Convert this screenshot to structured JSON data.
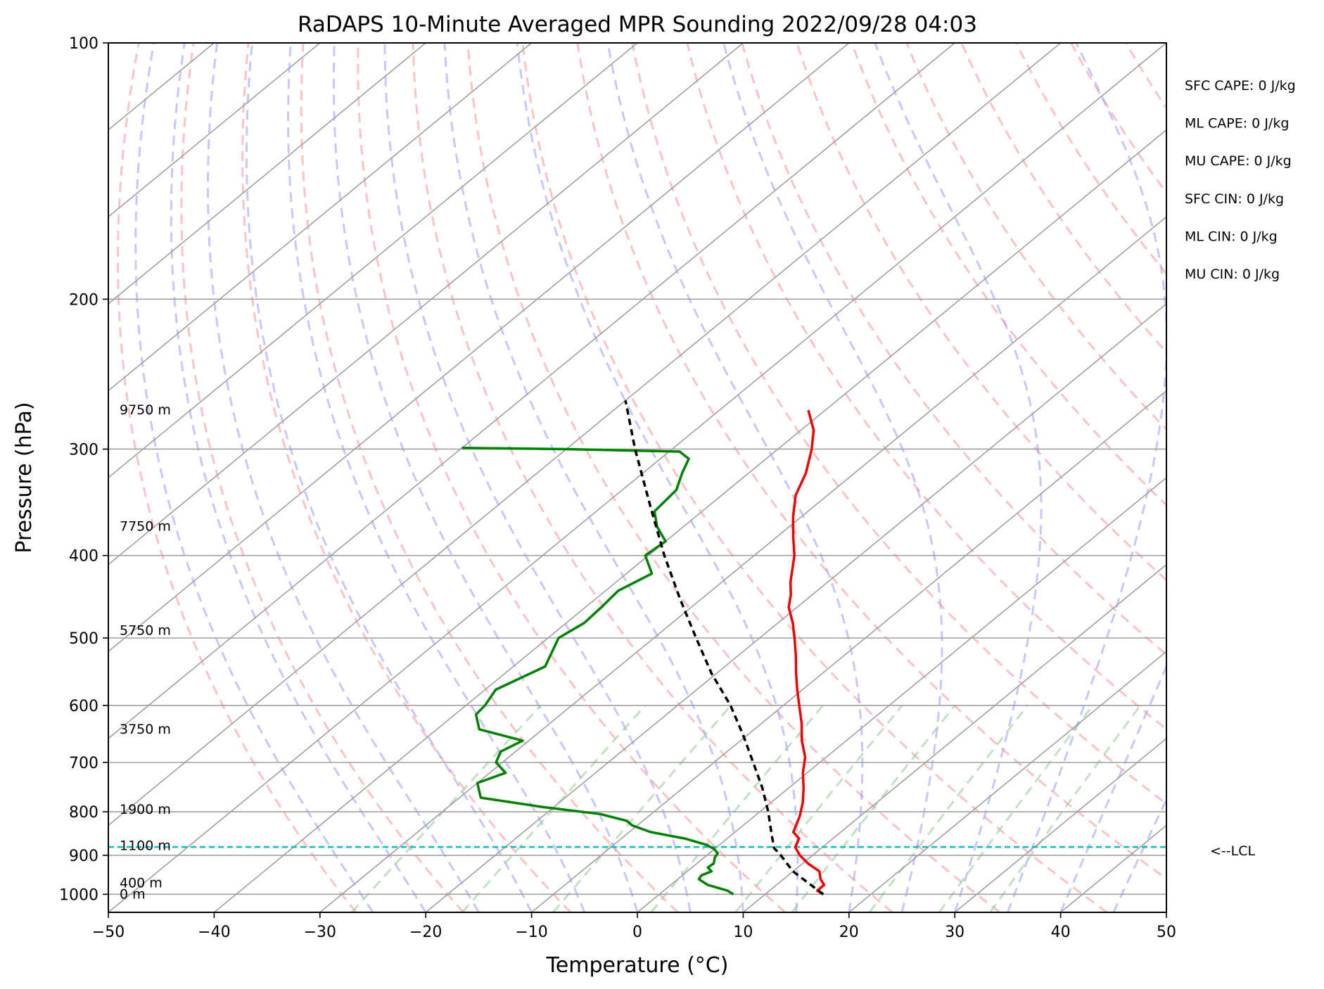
{
  "chart_data": {
    "type": "line",
    "title": "RaDAPS 10-Minute Averaged MPR Sounding 2022/09/28 04:03",
    "xlabel": "Temperature (°C)",
    "ylabel": "Pressure (hPa)",
    "xlim": [
      -50,
      50
    ],
    "ylim": [
      1050,
      100
    ],
    "y_scale": "log",
    "skew_t": true,
    "grid": true,
    "x_ticks": [
      "−50",
      "−40",
      "−30",
      "−20",
      "−10",
      "0",
      "10",
      "20",
      "30",
      "40",
      "50"
    ],
    "x_tick_values": [
      -50,
      -40,
      -30,
      -20,
      -10,
      0,
      10,
      20,
      30,
      40,
      50
    ],
    "y_ticks": [
      "100",
      "200",
      "300",
      "400",
      "500",
      "600",
      "700",
      "800",
      "900",
      "1000"
    ],
    "y_tick_values": [
      100,
      200,
      300,
      400,
      500,
      600,
      700,
      800,
      900,
      1000
    ],
    "series": [
      {
        "role": "temperature",
        "color": "#ee0000",
        "points": [
          {
            "p": 1000,
            "t": 15.5
          },
          {
            "p": 990,
            "t": 14.5
          },
          {
            "p": 975,
            "t": 14.5
          },
          {
            "p": 960,
            "t": 13.5
          },
          {
            "p": 940,
            "t": 12.5
          },
          {
            "p": 920,
            "t": 10.5
          },
          {
            "p": 900,
            "t": 8.8
          },
          {
            "p": 880,
            "t": 7.4
          },
          {
            "p": 860,
            "t": 6.8
          },
          {
            "p": 845,
            "t": 5.5
          },
          {
            "p": 830,
            "t": 5.0
          },
          {
            "p": 810,
            "t": 4.3
          },
          {
            "p": 780,
            "t": 3.0
          },
          {
            "p": 750,
            "t": 1.4
          },
          {
            "p": 720,
            "t": -0.4
          },
          {
            "p": 690,
            "t": -2.0
          },
          {
            "p": 660,
            "t": -4.2
          },
          {
            "p": 630,
            "t": -6.2
          },
          {
            "p": 600,
            "t": -8.5
          },
          {
            "p": 575,
            "t": -10.5
          },
          {
            "p": 550,
            "t": -12.5
          },
          {
            "p": 525,
            "t": -14.5
          },
          {
            "p": 500,
            "t": -16.7
          },
          {
            "p": 480,
            "t": -18.6
          },
          {
            "p": 460,
            "t": -20.8
          },
          {
            "p": 445,
            "t": -22.0
          },
          {
            "p": 430,
            "t": -23.5
          },
          {
            "p": 400,
            "t": -26.2
          },
          {
            "p": 380,
            "t": -28.5
          },
          {
            "p": 360,
            "t": -30.8
          },
          {
            "p": 340,
            "t": -33.0
          },
          {
            "p": 320,
            "t": -34.6
          },
          {
            "p": 300,
            "t": -36.8
          },
          {
            "p": 285,
            "t": -38.8
          },
          {
            "p": 270,
            "t": -41.6
          }
        ]
      },
      {
        "role": "dewpoint",
        "color": "#008000",
        "points": [
          {
            "p": 1000,
            "t": 7.0
          },
          {
            "p": 990,
            "t": 6.0
          },
          {
            "p": 975,
            "t": 3.5
          },
          {
            "p": 960,
            "t": 2.0
          },
          {
            "p": 950,
            "t": 1.8
          },
          {
            "p": 940,
            "t": 2.3
          },
          {
            "p": 930,
            "t": 1.5
          },
          {
            "p": 920,
            "t": 1.6
          },
          {
            "p": 905,
            "t": 1.0
          },
          {
            "p": 895,
            "t": 0.8
          },
          {
            "p": 885,
            "t": 0.0
          },
          {
            "p": 875,
            "t": -1.2
          },
          {
            "p": 860,
            "t": -4.0
          },
          {
            "p": 845,
            "t": -8.0
          },
          {
            "p": 830,
            "t": -10.5
          },
          {
            "p": 820,
            "t": -11.5
          },
          {
            "p": 805,
            "t": -14.8
          },
          {
            "p": 790,
            "t": -21.0
          },
          {
            "p": 770,
            "t": -28.0
          },
          {
            "p": 740,
            "t": -30.0
          },
          {
            "p": 720,
            "t": -28.5
          },
          {
            "p": 700,
            "t": -30.6
          },
          {
            "p": 680,
            "t": -31.4
          },
          {
            "p": 660,
            "t": -30.6
          },
          {
            "p": 640,
            "t": -36.0
          },
          {
            "p": 615,
            "t": -38.0
          },
          {
            "p": 600,
            "t": -38.2
          },
          {
            "p": 575,
            "t": -39.0
          },
          {
            "p": 540,
            "t": -37.0
          },
          {
            "p": 500,
            "t": -39.0
          },
          {
            "p": 480,
            "t": -38.3
          },
          {
            "p": 460,
            "t": -38.5
          },
          {
            "p": 440,
            "t": -38.8
          },
          {
            "p": 420,
            "t": -37.6
          },
          {
            "p": 400,
            "t": -40.3
          },
          {
            "p": 385,
            "t": -40.0
          },
          {
            "p": 370,
            "t": -42.5
          },
          {
            "p": 355,
            "t": -44.5
          },
          {
            "p": 335,
            "t": -44.9
          },
          {
            "p": 320,
            "t": -46.3
          },
          {
            "p": 308,
            "t": -47.3
          },
          {
            "p": 302,
            "t": -49.0
          },
          {
            "p": 300,
            "t": -60.0
          },
          {
            "p": 299,
            "t": -70.0
          }
        ]
      },
      {
        "role": "parcel",
        "color": "#000000",
        "dashed": true,
        "points": [
          {
            "p": 1000,
            "t": 15.5
          },
          {
            "p": 940,
            "t": 10.0
          },
          {
            "p": 900,
            "t": 7.0
          },
          {
            "p": 882,
            "t": 5.5
          },
          {
            "p": 850,
            "t": 3.7
          },
          {
            "p": 800,
            "t": 0.8
          },
          {
            "p": 750,
            "t": -2.5
          },
          {
            "p": 700,
            "t": -6.3
          },
          {
            "p": 650,
            "t": -10.4
          },
          {
            "p": 600,
            "t": -15.0
          },
          {
            "p": 550,
            "t": -20.5
          },
          {
            "p": 500,
            "t": -26.0
          },
          {
            "p": 450,
            "t": -32.0
          },
          {
            "p": 400,
            "t": -38.5
          },
          {
            "p": 350,
            "t": -45.5
          },
          {
            "p": 300,
            "t": -53.5
          },
          {
            "p": 263,
            "t": -60.0
          }
        ]
      }
    ],
    "lcl": {
      "p": 880,
      "label": "<--LCL",
      "color": "#00c0c0"
    },
    "height_labels": [
      {
        "p": 270,
        "label": "9750 m"
      },
      {
        "p": 370,
        "label": "7750 m"
      },
      {
        "p": 490,
        "label": "5750 m"
      },
      {
        "p": 640,
        "label": "3750 m"
      },
      {
        "p": 795,
        "label": "1900 m"
      },
      {
        "p": 877,
        "label": "1100 m"
      },
      {
        "p": 970,
        "label": "400 m"
      },
      {
        "p": 1000,
        "label": "0 m"
      }
    ],
    "indices": [
      {
        "label": "SFC CAPE: 0 J/kg"
      },
      {
        "label": "ML CAPE: 0 J/kg"
      },
      {
        "label": "MU CAPE: 0 J/kg"
      },
      {
        "label": "SFC CIN: 0 J/kg"
      },
      {
        "label": "ML CIN: 0 J/kg"
      },
      {
        "label": "MU CIN: 0 J/kg"
      }
    ],
    "colors": {
      "dry_adiabats": "#ff9999",
      "moist_adiabats": "#9999ff",
      "mixing_ratio": "#99cc99",
      "isotherms": "#a0a0a0",
      "isobars": "#a0a0a0"
    }
  }
}
